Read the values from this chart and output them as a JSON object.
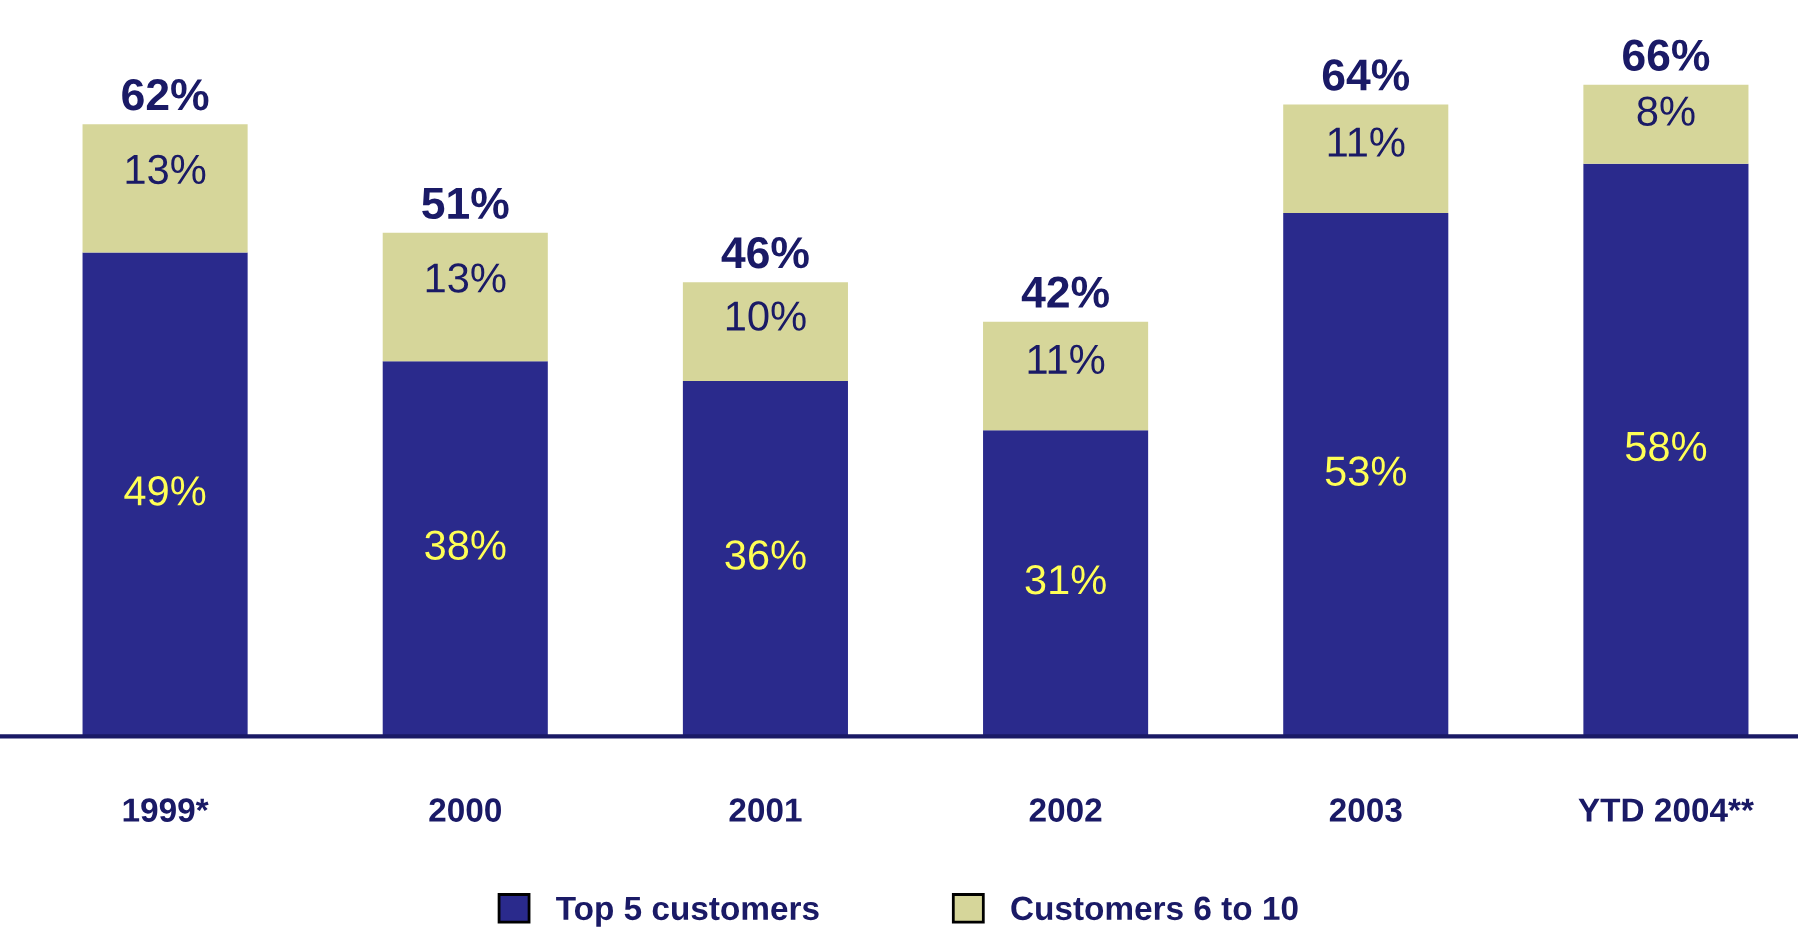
{
  "chart_data": {
    "type": "bar",
    "stacked": true,
    "legend": "bottom",
    "categories": [
      "1999*",
      "2000",
      "2001",
      "2002",
      "2003",
      "YTD 2004**"
    ],
    "series": [
      {
        "name": "Top 5 customers",
        "color": "#2a2a8c",
        "values": [
          49,
          38,
          36,
          31,
          53,
          58
        ],
        "value_labels": [
          "49%",
          "38%",
          "36%",
          "31%",
          "53%",
          "58%"
        ]
      },
      {
        "name": "Customers 6 to 10",
        "color": "#d6d69a",
        "values": [
          13,
          13,
          10,
          11,
          11,
          8
        ],
        "value_labels": [
          "13%",
          "13%",
          "10%",
          "11%",
          "11%",
          "8%"
        ]
      }
    ],
    "totals": [
      "62%",
      "51%",
      "46%",
      "42%",
      "64%",
      "66%"
    ]
  }
}
